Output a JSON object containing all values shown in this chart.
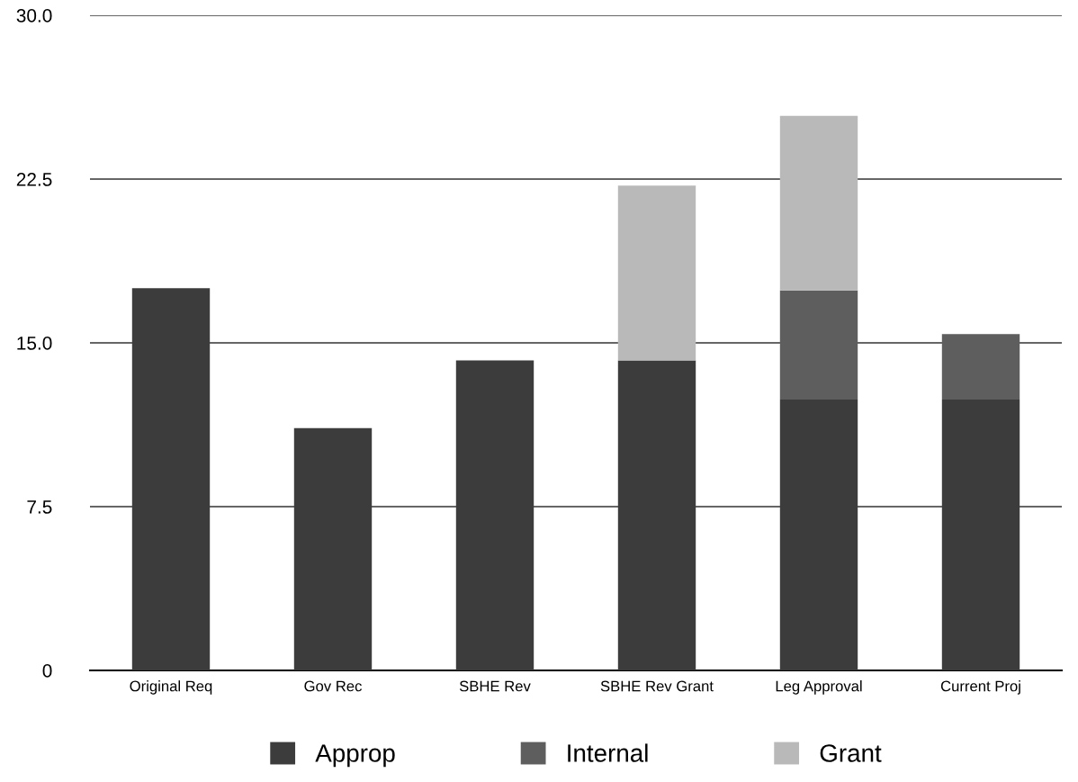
{
  "chart_data": {
    "type": "bar",
    "stacked": true,
    "categories": [
      "Original Req",
      "Gov Rec",
      "SBHE Rev",
      "SBHE Rev Grant",
      "Leg Approval",
      "Current Proj"
    ],
    "series": [
      {
        "name": "Approp",
        "color": "#3c3c3c",
        "values": [
          17.5,
          11.1,
          14.2,
          14.2,
          12.4,
          12.4
        ]
      },
      {
        "name": "Internal",
        "color": "#5e5e5e",
        "values": [
          0,
          0,
          0,
          0,
          5.0,
          3.0
        ]
      },
      {
        "name": "Grant",
        "color": "#b9b9b9",
        "values": [
          0,
          0,
          0,
          8.0,
          8.0,
          0
        ]
      }
    ],
    "ylim": [
      0,
      30
    ],
    "yticks": [
      0,
      7.5,
      {
        "value": 15,
        "label": "15.0"
      },
      22.5,
      {
        "value": 30,
        "label": "30.0"
      }
    ],
    "grid": "y",
    "legend": "bottom"
  }
}
